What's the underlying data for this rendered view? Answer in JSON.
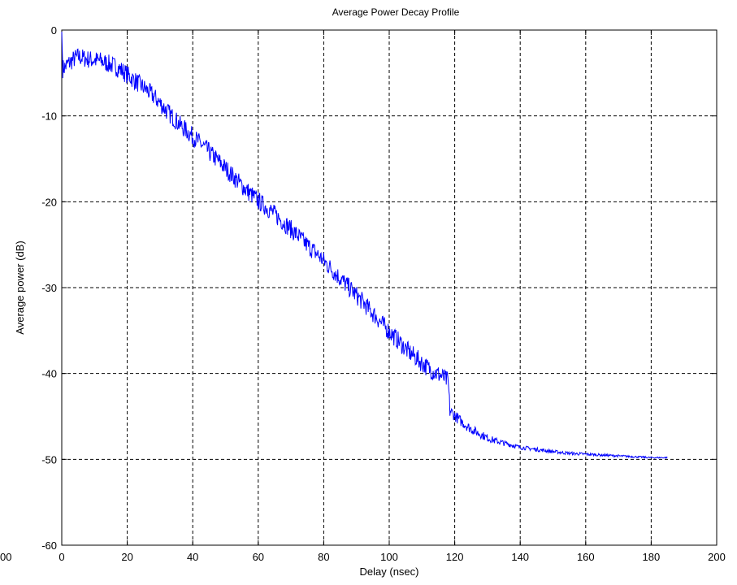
{
  "chart_data": {
    "type": "line",
    "title": "Average Power Decay Profile",
    "xlabel": "Delay (nsec)",
    "ylabel": "Average power (dB)",
    "xlim": [
      0,
      200
    ],
    "ylim": [
      -60,
      0
    ],
    "xticks": [
      "0",
      "20",
      "40",
      "60",
      "80",
      "100",
      "120",
      "140",
      "160",
      "180",
      "200"
    ],
    "yticks": [
      "0",
      "-10",
      "-20",
      "-30",
      "-40",
      "-50",
      "-60"
    ],
    "left_cut_tick_label": "00",
    "grid": true,
    "grid_style": "dashed",
    "line_color": "#0000ff",
    "series": [
      {
        "x": [
          0,
          0.3,
          1,
          2,
          3,
          4,
          5,
          6,
          8,
          10,
          12,
          14,
          16,
          18,
          20,
          22,
          24,
          26,
          28,
          30,
          32,
          34,
          36,
          38,
          40,
          42,
          44,
          46,
          48,
          50,
          52,
          54,
          56,
          58,
          60,
          62,
          64,
          66,
          68,
          70,
          72,
          74,
          76,
          78,
          80,
          82,
          84,
          86,
          88,
          90,
          92,
          94,
          96,
          98,
          100,
          102,
          104,
          106,
          108,
          110,
          112,
          114,
          116,
          117,
          118,
          118.5,
          119,
          120,
          122,
          124,
          126,
          128,
          130,
          132,
          134,
          136,
          138,
          140,
          142,
          144,
          146,
          148,
          150,
          155,
          160,
          165,
          170,
          175,
          180,
          185
        ],
        "y": [
          -0.2,
          -4.5,
          -4.3,
          -3.9,
          -3.6,
          -3.3,
          -3.1,
          -3.2,
          -3.4,
          -3.5,
          -3.6,
          -3.9,
          -4.2,
          -4.6,
          -5.2,
          -5.8,
          -6.4,
          -7.0,
          -7.7,
          -8.5,
          -9.4,
          -10.2,
          -11.0,
          -11.7,
          -12.4,
          -13.1,
          -13.8,
          -14.6,
          -15.3,
          -16.1,
          -16.9,
          -17.7,
          -18.5,
          -19.2,
          -19.9,
          -20.5,
          -21.1,
          -21.8,
          -22.5,
          -23.2,
          -23.9,
          -24.7,
          -25.4,
          -26.1,
          -26.9,
          -27.7,
          -28.5,
          -29.3,
          -30.1,
          -30.9,
          -31.7,
          -32.6,
          -33.4,
          -34.3,
          -35.1,
          -35.9,
          -36.7,
          -37.5,
          -38.1,
          -38.8,
          -39.4,
          -39.9,
          -40.3,
          -40.6,
          -40.9,
          -44.2,
          -44.5,
          -44.9,
          -45.6,
          -46.2,
          -46.7,
          -47.1,
          -47.5,
          -47.8,
          -48.0,
          -48.2,
          -48.4,
          -48.6,
          -48.7,
          -48.8,
          -48.9,
          -49.0,
          -49.1,
          -49.3,
          -49.4,
          -49.5,
          -49.6,
          -49.7,
          -49.8,
          -49.8
        ]
      }
    ]
  }
}
